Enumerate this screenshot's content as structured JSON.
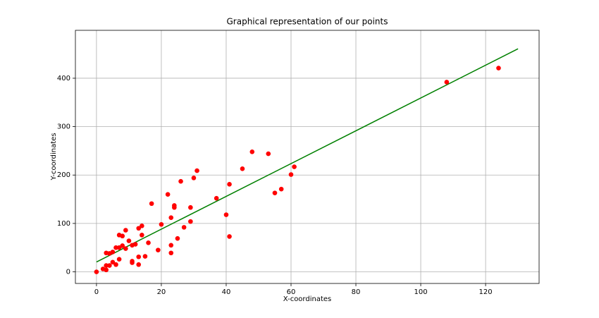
{
  "chart_data": {
    "type": "scatter",
    "title": "Graphical representation of our points",
    "x_label": "X-coordinates",
    "y_label": "Y-coordinates",
    "x": [
      0,
      2,
      3,
      3,
      3,
      4,
      4,
      5,
      5,
      6,
      6,
      7,
      7,
      7,
      8,
      8,
      9,
      9,
      10,
      11,
      11,
      11,
      12,
      13,
      13,
      13,
      14,
      14,
      15,
      16,
      17,
      19,
      20,
      22,
      23,
      23,
      23,
      24,
      24,
      25,
      26,
      27,
      29,
      29,
      30,
      31,
      37,
      40,
      41,
      41,
      45,
      48,
      53,
      55,
      57,
      60,
      61,
      108,
      124
    ],
    "y": [
      0,
      6,
      4,
      13,
      39,
      13,
      38,
      41,
      20,
      50,
      15,
      26,
      76,
      50,
      74,
      54,
      48,
      86,
      64,
      22,
      19,
      55,
      57,
      15,
      31,
      90,
      95,
      76,
      32,
      60,
      141,
      45,
      98,
      160,
      55,
      39,
      112,
      137,
      133,
      69,
      187,
      92,
      133,
      104,
      194,
      209,
      152,
      118,
      73,
      181,
      213,
      248,
      244,
      163,
      171,
      201,
      217,
      392,
      421
    ],
    "color": "#ff0000",
    "fit_line": {
      "x": [
        0,
        130
      ],
      "y": [
        20.4,
        460.8
      ],
      "color": "#008000"
    },
    "xlim": [
      -6.5,
      136.5
    ],
    "ylim": [
      -24,
      499
    ],
    "xticks": [
      0,
      20,
      40,
      60,
      80,
      100,
      120
    ],
    "yticks": [
      0,
      100,
      200,
      300,
      400
    ],
    "grid": true
  }
}
